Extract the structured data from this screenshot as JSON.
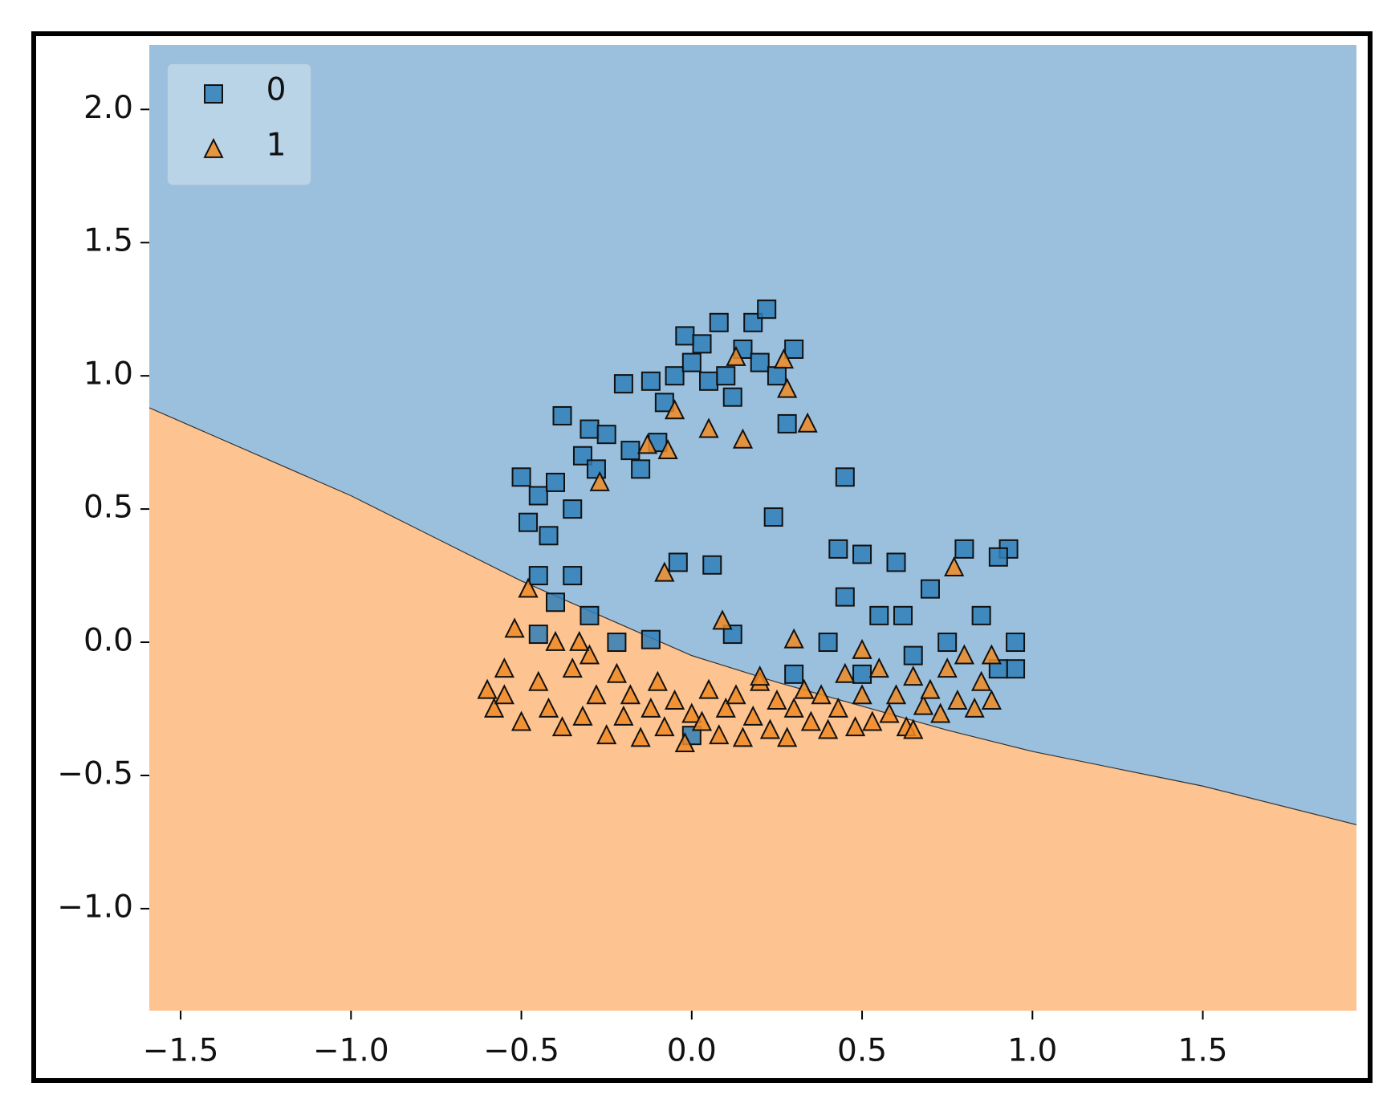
{
  "chart_data": {
    "type": "scatter",
    "xlim": [
      -1.592,
      1.951
    ],
    "ylim": [
      -1.383,
      2.242
    ],
    "xticks": [
      {
        "value": -1.5,
        "label": "−1.5"
      },
      {
        "value": -1.0,
        "label": "−1.0"
      },
      {
        "value": -0.5,
        "label": "−0.5"
      },
      {
        "value": 0.0,
        "label": "0.0"
      },
      0.5,
      {
        "value": 1.0,
        "label": "1.0"
      },
      1.5
    ],
    "yticks": [
      {
        "value": -1.0,
        "label": "−1.0"
      },
      {
        "value": -0.5,
        "label": "−0.5"
      },
      {
        "value": 0.0,
        "label": "0.0"
      },
      0.5,
      {
        "value": 1.0,
        "label": "1.0"
      },
      1.5,
      {
        "value": 2.0,
        "label": "2.0"
      }
    ],
    "legend": "upper left",
    "region_colors": {
      "upper": "#9bc0dd",
      "lower": "#fdc491"
    },
    "decision_boundary": {
      "x": [
        -1.592,
        -1.0,
        -0.5,
        -0.25,
        0.0,
        0.25,
        0.5,
        0.75,
        1.0,
        1.5,
        1.951
      ],
      "y": [
        0.88,
        0.55,
        0.23,
        0.09,
        -0.05,
        -0.15,
        -0.24,
        -0.33,
        -0.41,
        -0.54,
        -0.685
      ]
    },
    "series": [
      {
        "name": "0",
        "color": "#2f7fb8",
        "marker": "square",
        "x": [
          -0.5,
          -0.48,
          -0.45,
          -0.42,
          -0.4,
          -0.38,
          -0.35,
          -0.32,
          -0.3,
          -0.28,
          -0.25,
          -0.2,
          -0.18,
          -0.15,
          -0.12,
          -0.1,
          -0.08,
          -0.05,
          -0.02,
          0.0,
          0.03,
          0.05,
          0.08,
          0.1,
          0.12,
          0.15,
          0.18,
          0.2,
          0.22,
          0.25,
          0.28,
          0.3,
          0.45,
          0.24,
          -0.04,
          0.06,
          0.12,
          0.43,
          0.5,
          0.6,
          0.7,
          0.8,
          0.93,
          0.9,
          0.62,
          0.55,
          0.45,
          0.75,
          0.85,
          0.95,
          0.95,
          0.5,
          0.3,
          -0.45,
          -0.4,
          -0.35,
          -0.3,
          -0.22,
          -0.12,
          -0.45,
          0.0,
          0.9,
          0.65,
          0.4
        ],
        "y": [
          0.62,
          0.45,
          0.55,
          0.4,
          0.6,
          0.85,
          0.5,
          0.7,
          0.8,
          0.65,
          0.78,
          0.97,
          0.72,
          0.65,
          0.98,
          0.75,
          0.9,
          1.0,
          1.15,
          1.05,
          1.12,
          0.98,
          1.2,
          1.0,
          0.92,
          1.1,
          1.2,
          1.05,
          1.25,
          1.0,
          0.82,
          1.1,
          0.62,
          0.47,
          0.3,
          0.29,
          0.03,
          0.35,
          0.33,
          0.3,
          0.2,
          0.35,
          0.35,
          0.32,
          0.1,
          0.1,
          0.17,
          0.0,
          0.1,
          0.0,
          -0.1,
          -0.12,
          -0.12,
          0.25,
          0.15,
          0.25,
          0.1,
          0.0,
          0.01,
          0.03,
          -0.35,
          -0.1,
          -0.05,
          0.0
        ]
      },
      {
        "name": "1",
        "color": "#f08a24",
        "marker": "triangle",
        "x": [
          -0.58,
          -0.55,
          -0.52,
          -0.5,
          -0.48,
          -0.45,
          -0.42,
          -0.4,
          -0.38,
          -0.35,
          -0.32,
          -0.3,
          -0.28,
          -0.25,
          -0.22,
          -0.2,
          -0.18,
          -0.15,
          -0.12,
          -0.1,
          -0.08,
          -0.05,
          -0.02,
          0.0,
          0.03,
          0.05,
          0.08,
          0.1,
          0.13,
          0.15,
          0.18,
          0.2,
          0.23,
          0.25,
          0.28,
          0.3,
          0.33,
          0.35,
          0.38,
          0.4,
          0.43,
          0.45,
          0.48,
          0.5,
          0.53,
          0.55,
          0.58,
          0.6,
          0.63,
          0.65,
          0.68,
          0.7,
          0.73,
          0.75,
          0.78,
          0.8,
          0.83,
          0.85,
          0.88,
          0.88,
          -0.55,
          -0.6,
          -0.33,
          0.13,
          0.27,
          0.28,
          0.34,
          -0.05,
          0.05,
          0.15,
          -0.13,
          -0.07,
          -0.27,
          -0.08,
          0.09,
          0.3,
          0.77,
          0.5,
          0.2,
          0.65
        ],
        "y": [
          -0.25,
          -0.1,
          0.05,
          -0.3,
          0.2,
          -0.15,
          -0.25,
          0.0,
          -0.32,
          -0.1,
          -0.28,
          -0.05,
          -0.2,
          -0.35,
          -0.12,
          -0.28,
          -0.2,
          -0.36,
          -0.25,
          -0.15,
          -0.32,
          -0.22,
          -0.38,
          -0.27,
          -0.3,
          -0.18,
          -0.35,
          -0.25,
          -0.2,
          -0.36,
          -0.28,
          -0.15,
          -0.33,
          -0.22,
          -0.36,
          -0.25,
          -0.18,
          -0.3,
          -0.2,
          -0.33,
          -0.25,
          -0.12,
          -0.32,
          -0.2,
          -0.3,
          -0.1,
          -0.27,
          -0.2,
          -0.32,
          -0.13,
          -0.24,
          -0.18,
          -0.27,
          -0.1,
          -0.22,
          -0.05,
          -0.25,
          -0.15,
          -0.05,
          -0.22,
          -0.2,
          -0.18,
          0.0,
          1.07,
          1.06,
          0.95,
          0.82,
          0.87,
          0.8,
          0.76,
          0.74,
          0.72,
          0.6,
          0.26,
          0.08,
          0.01,
          0.28,
          -0.03,
          -0.13,
          -0.33
        ]
      }
    ]
  }
}
